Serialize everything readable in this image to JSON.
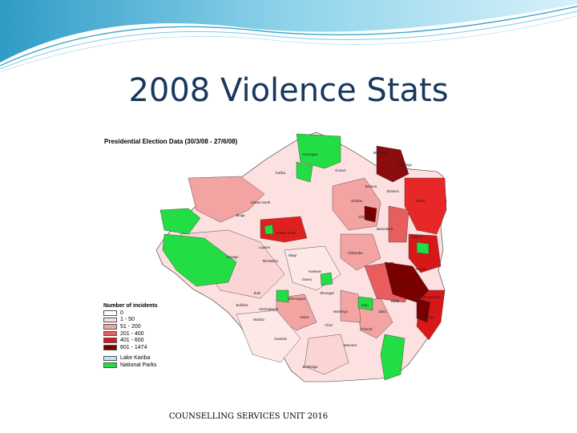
{
  "slide": {
    "title": "2008 Violence Stats",
    "footer": "COUNSELLING SERVICES UNIT 2016"
  },
  "map": {
    "heading": "Presidential Election Data (30/3/08 - 27/6/08)",
    "legend": {
      "title": "Number of incidents",
      "incident_ranges": [
        {
          "label": "0",
          "color": "#ffffff"
        },
        {
          "label": "1 - 50",
          "color": "#fde0e0"
        },
        {
          "label": "51 - 200",
          "color": "#f4a3a3"
        },
        {
          "label": "201 - 400",
          "color": "#e85d5d"
        },
        {
          "label": "401 - 600",
          "color": "#d81818"
        },
        {
          "label": "601 - 1474",
          "color": "#7a0000"
        }
      ],
      "features": [
        {
          "label": "Lake Kariba",
          "color": "#bde8f0"
        },
        {
          "label": "National Parks",
          "color": "#22dd44"
        }
      ]
    },
    "district_labels": [
      "Hurungwe",
      "Kariba",
      "Binga",
      "Gokwe North",
      "Gokwe South",
      "Lupane",
      "Hwange",
      "Tsholotsho",
      "Nkayi",
      "Kwekwe",
      "Chegutu",
      "Zvimba",
      "Guruve",
      "Mt Darwin",
      "Rushinga",
      "Mudzi",
      "Bindura",
      "Shamva",
      "Marondera",
      "Chikomba",
      "Gutu",
      "Buhera",
      "Makoni",
      "Mutare",
      "Chimanimani",
      "Chipinge",
      "Bikita",
      "Zaka",
      "Masvingo",
      "Chivi",
      "Mberengwa",
      "Insiza",
      "Gwanda",
      "Beitbridge",
      "Bulilima",
      "Matobo",
      "Umzingwane",
      "Shurugwi",
      "Gweru",
      "Mwenezi",
      "Chiredzi",
      "Bubi"
    ]
  }
}
